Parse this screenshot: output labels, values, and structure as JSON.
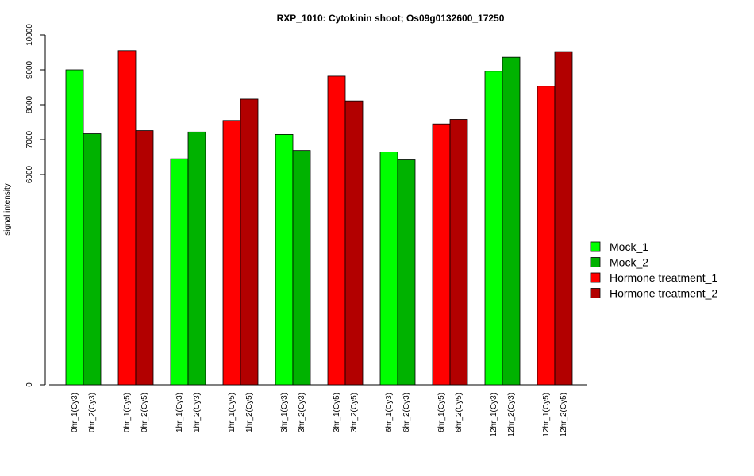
{
  "chart_data": {
    "type": "bar",
    "title": "RXP_1010: Cytokinin shoot; Os09g0132600_17250",
    "ylabel": "signal intensity",
    "xlabel": "",
    "y_ticks": [
      "0",
      "6000",
      "7000",
      "8000",
      "9000",
      "10000"
    ],
    "ylim": [
      0,
      10000
    ],
    "y_axis_break": "linear 0 to 6000 compressed; ticks shown at 0, 6000, 7000, 8000, 9000, 10000",
    "legend_position": "right",
    "series_colors": {
      "Mock_1": "#00ff00",
      "Mock_2": "#00b200",
      "Hormone treatment_1": "#ff0000",
      "Hormone treatment_2": "#b20000"
    },
    "legend": [
      "Mock_1",
      "Mock_2",
      "Hormone treatment_1",
      "Hormone treatment_2"
    ],
    "bars": [
      {
        "label": "0hr_1(Cy3)",
        "value": 9000,
        "series": "Mock_1"
      },
      {
        "label": "0hr_2(Cy3)",
        "value": 7170,
        "series": "Mock_2"
      },
      {
        "label": "0hr_1(Cy5)",
        "value": 9550,
        "series": "Hormone treatment_1"
      },
      {
        "label": "0hr_2(Cy5)",
        "value": 7260,
        "series": "Hormone treatment_2"
      },
      {
        "label": "1hr_1(Cy3)",
        "value": 6450,
        "series": "Mock_1"
      },
      {
        "label": "1hr_2(Cy3)",
        "value": 7220,
        "series": "Mock_2"
      },
      {
        "label": "1hr_1(Cy5)",
        "value": 7550,
        "series": "Hormone treatment_1"
      },
      {
        "label": "1hr_2(Cy5)",
        "value": 8160,
        "series": "Hormone treatment_2"
      },
      {
        "label": "3hr_1(Cy3)",
        "value": 7150,
        "series": "Mock_1"
      },
      {
        "label": "3hr_2(Cy3)",
        "value": 6690,
        "series": "Mock_2"
      },
      {
        "label": "3hr_1(Cy5)",
        "value": 8820,
        "series": "Hormone treatment_1"
      },
      {
        "label": "3hr_2(Cy5)",
        "value": 8110,
        "series": "Hormone treatment_2"
      },
      {
        "label": "6hr_1(Cy3)",
        "value": 6650,
        "series": "Mock_1"
      },
      {
        "label": "6hr_2(Cy3)",
        "value": 6420,
        "series": "Mock_2"
      },
      {
        "label": "6hr_1(Cy5)",
        "value": 7450,
        "series": "Hormone treatment_1"
      },
      {
        "label": "6hr_2(Cy5)",
        "value": 7580,
        "series": "Hormone treatment_2"
      },
      {
        "label": "12hr_1(Cy3)",
        "value": 8960,
        "series": "Mock_1"
      },
      {
        "label": "12hr_2(Cy3)",
        "value": 9360,
        "series": "Mock_2"
      },
      {
        "label": "12hr_1(Cy5)",
        "value": 8530,
        "series": "Hormone treatment_1"
      },
      {
        "label": "12hr_2(Cy5)",
        "value": 9520,
        "series": "Hormone treatment_2"
      }
    ]
  }
}
